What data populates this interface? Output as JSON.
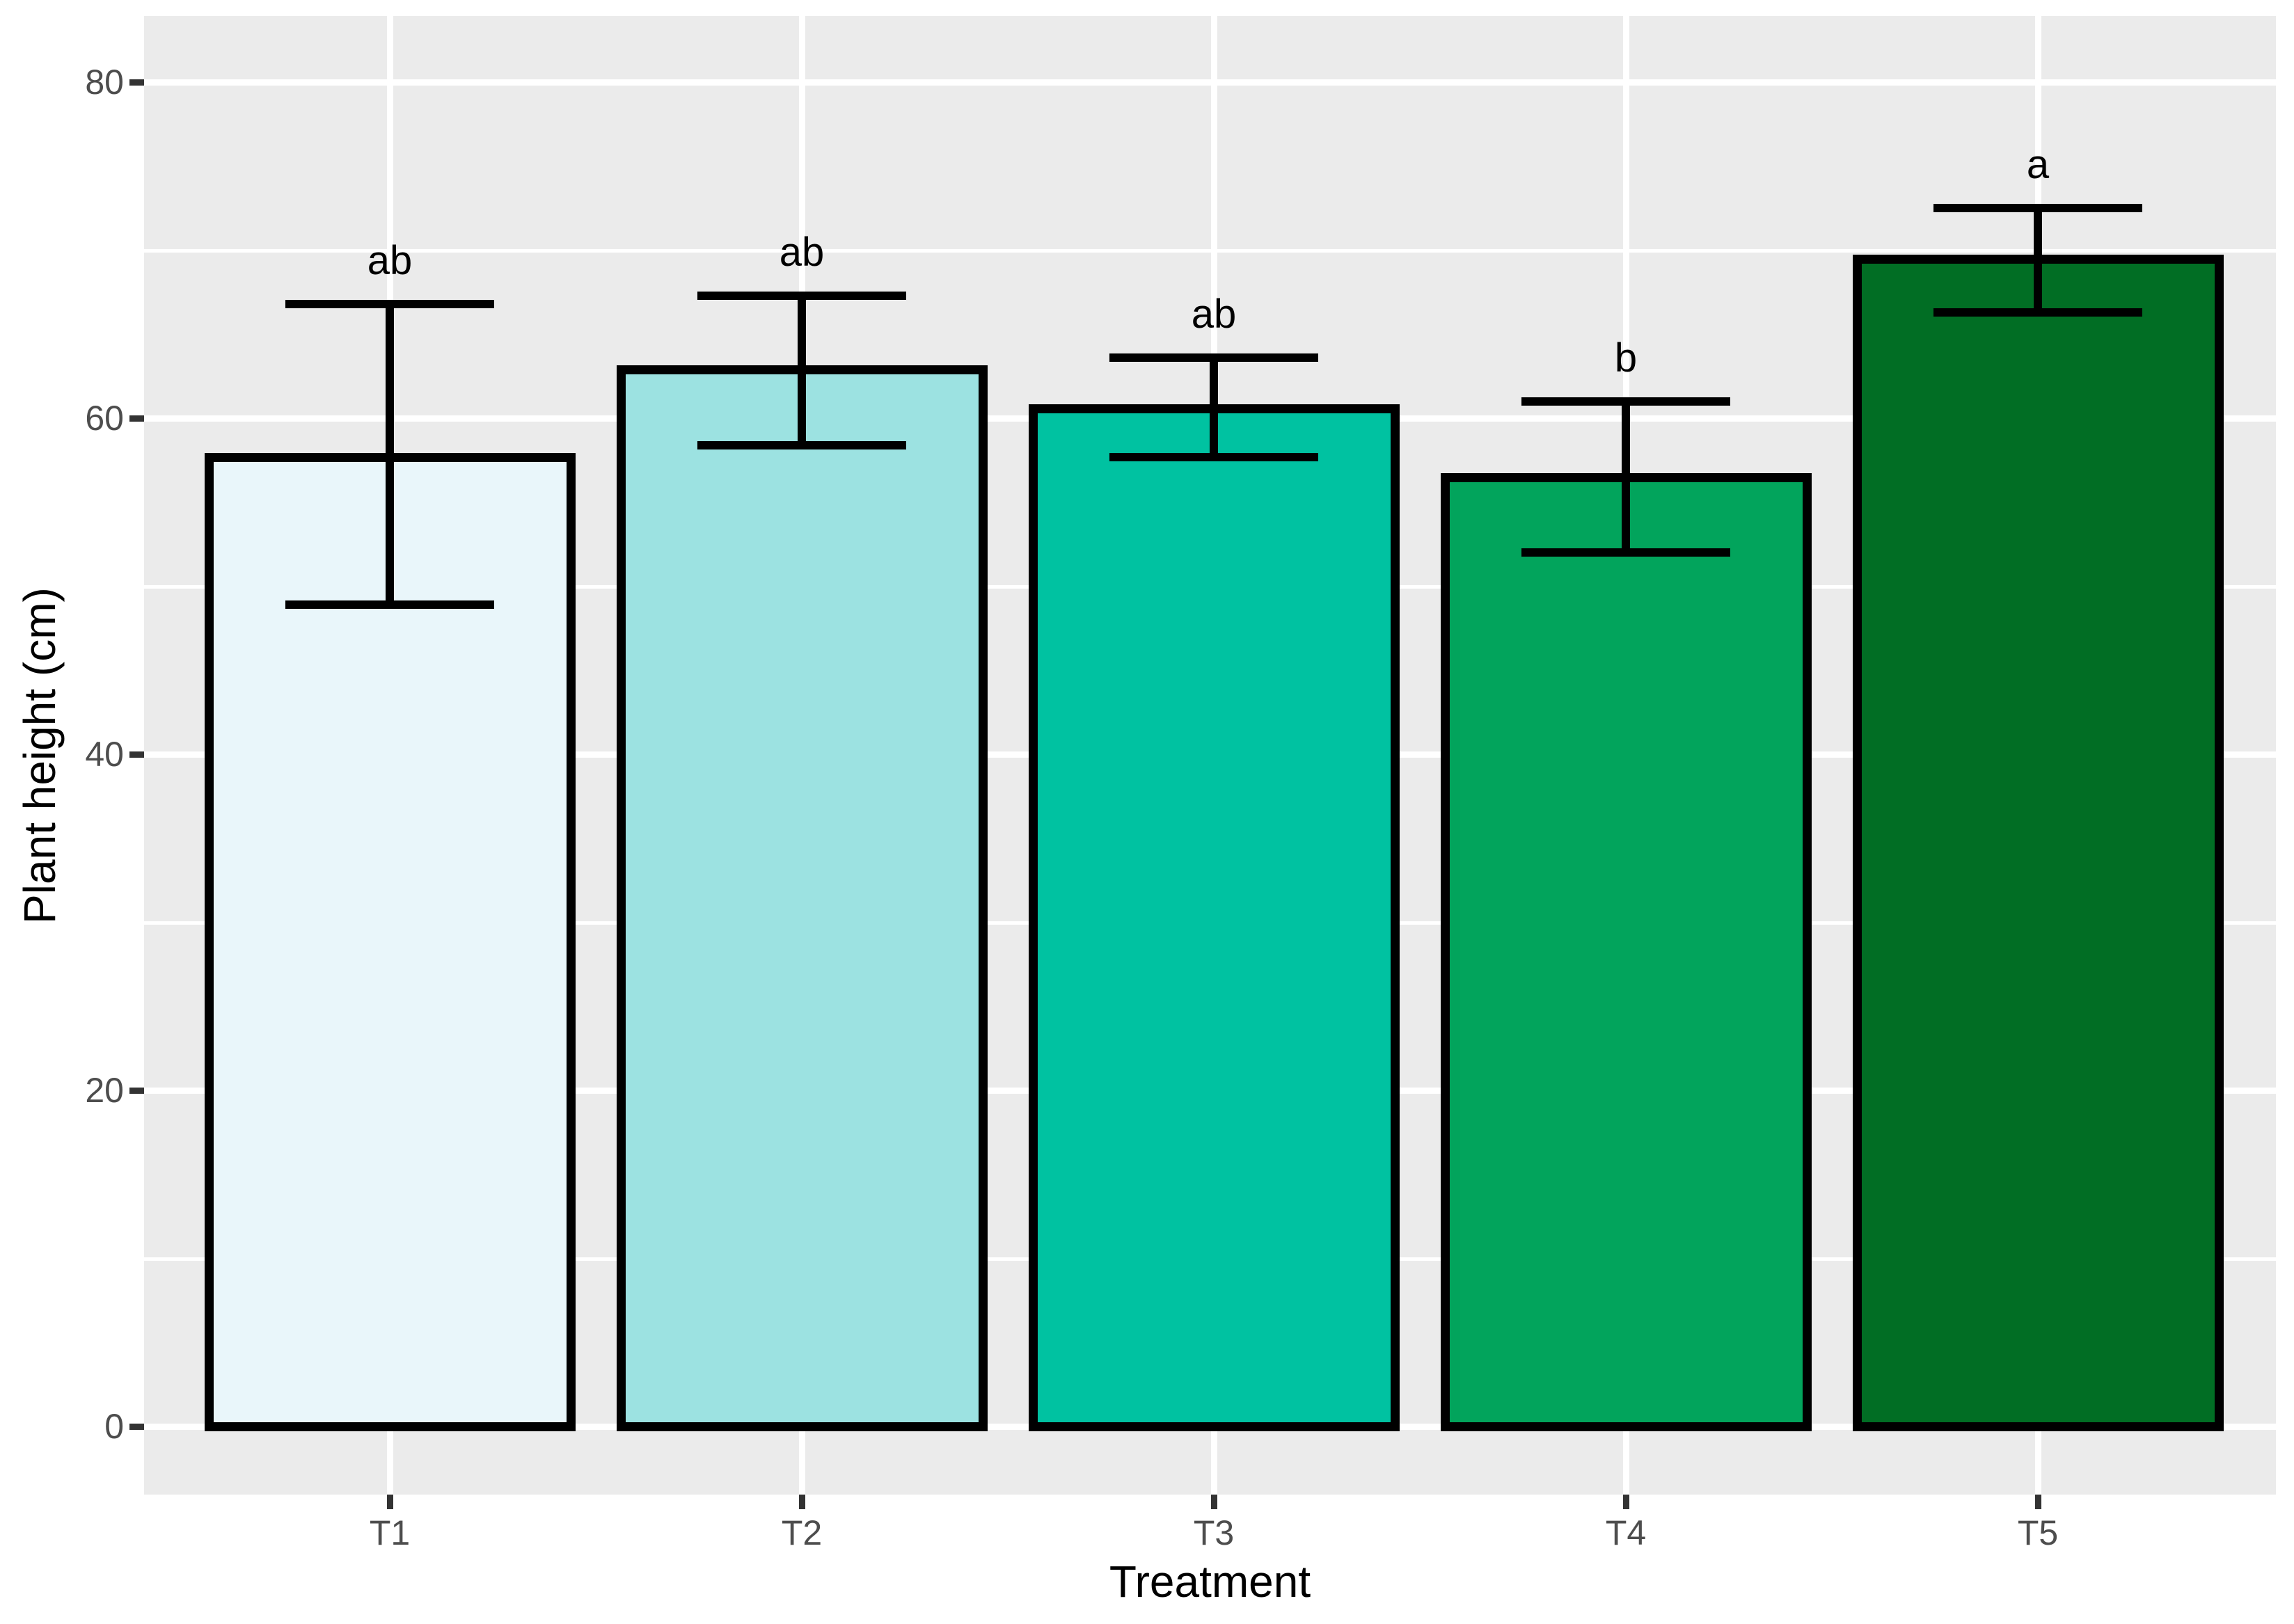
{
  "figure": {
    "background": "#FFFFFF",
    "panel_background": "#EBEBEB",
    "grid_color": "#FFFFFF",
    "axis_text_color": "#4D4D4D",
    "axis_title_color": "#000000",
    "bar_border_color": "#000000",
    "errorbar_color": "#000000"
  },
  "chart_data": {
    "type": "bar",
    "title": "",
    "xlabel": "Treatment",
    "ylabel": "Plant height (cm)",
    "categories": [
      "T1",
      "T2",
      "T3",
      "T4",
      "T5"
    ],
    "values": [
      57.7,
      62.9,
      60.6,
      56.5,
      69.5
    ],
    "error_upper": [
      66.8,
      67.3,
      63.6,
      61.0,
      72.5
    ],
    "error_lower": [
      48.9,
      58.4,
      57.7,
      52.0,
      66.3
    ],
    "sig_letters": [
      "ab",
      "ab",
      "ab",
      "b",
      "a"
    ],
    "bar_colors": [
      "#E9F6FA",
      "#9CE2E1",
      "#00C2A1",
      "#02A45C",
      "#016E24"
    ],
    "ylim": [
      0,
      80
    ],
    "yticks": [
      0,
      20,
      40,
      60,
      80
    ],
    "yticks_minor": [
      10,
      30,
      50,
      70
    ],
    "grid": true,
    "legend": "none"
  }
}
